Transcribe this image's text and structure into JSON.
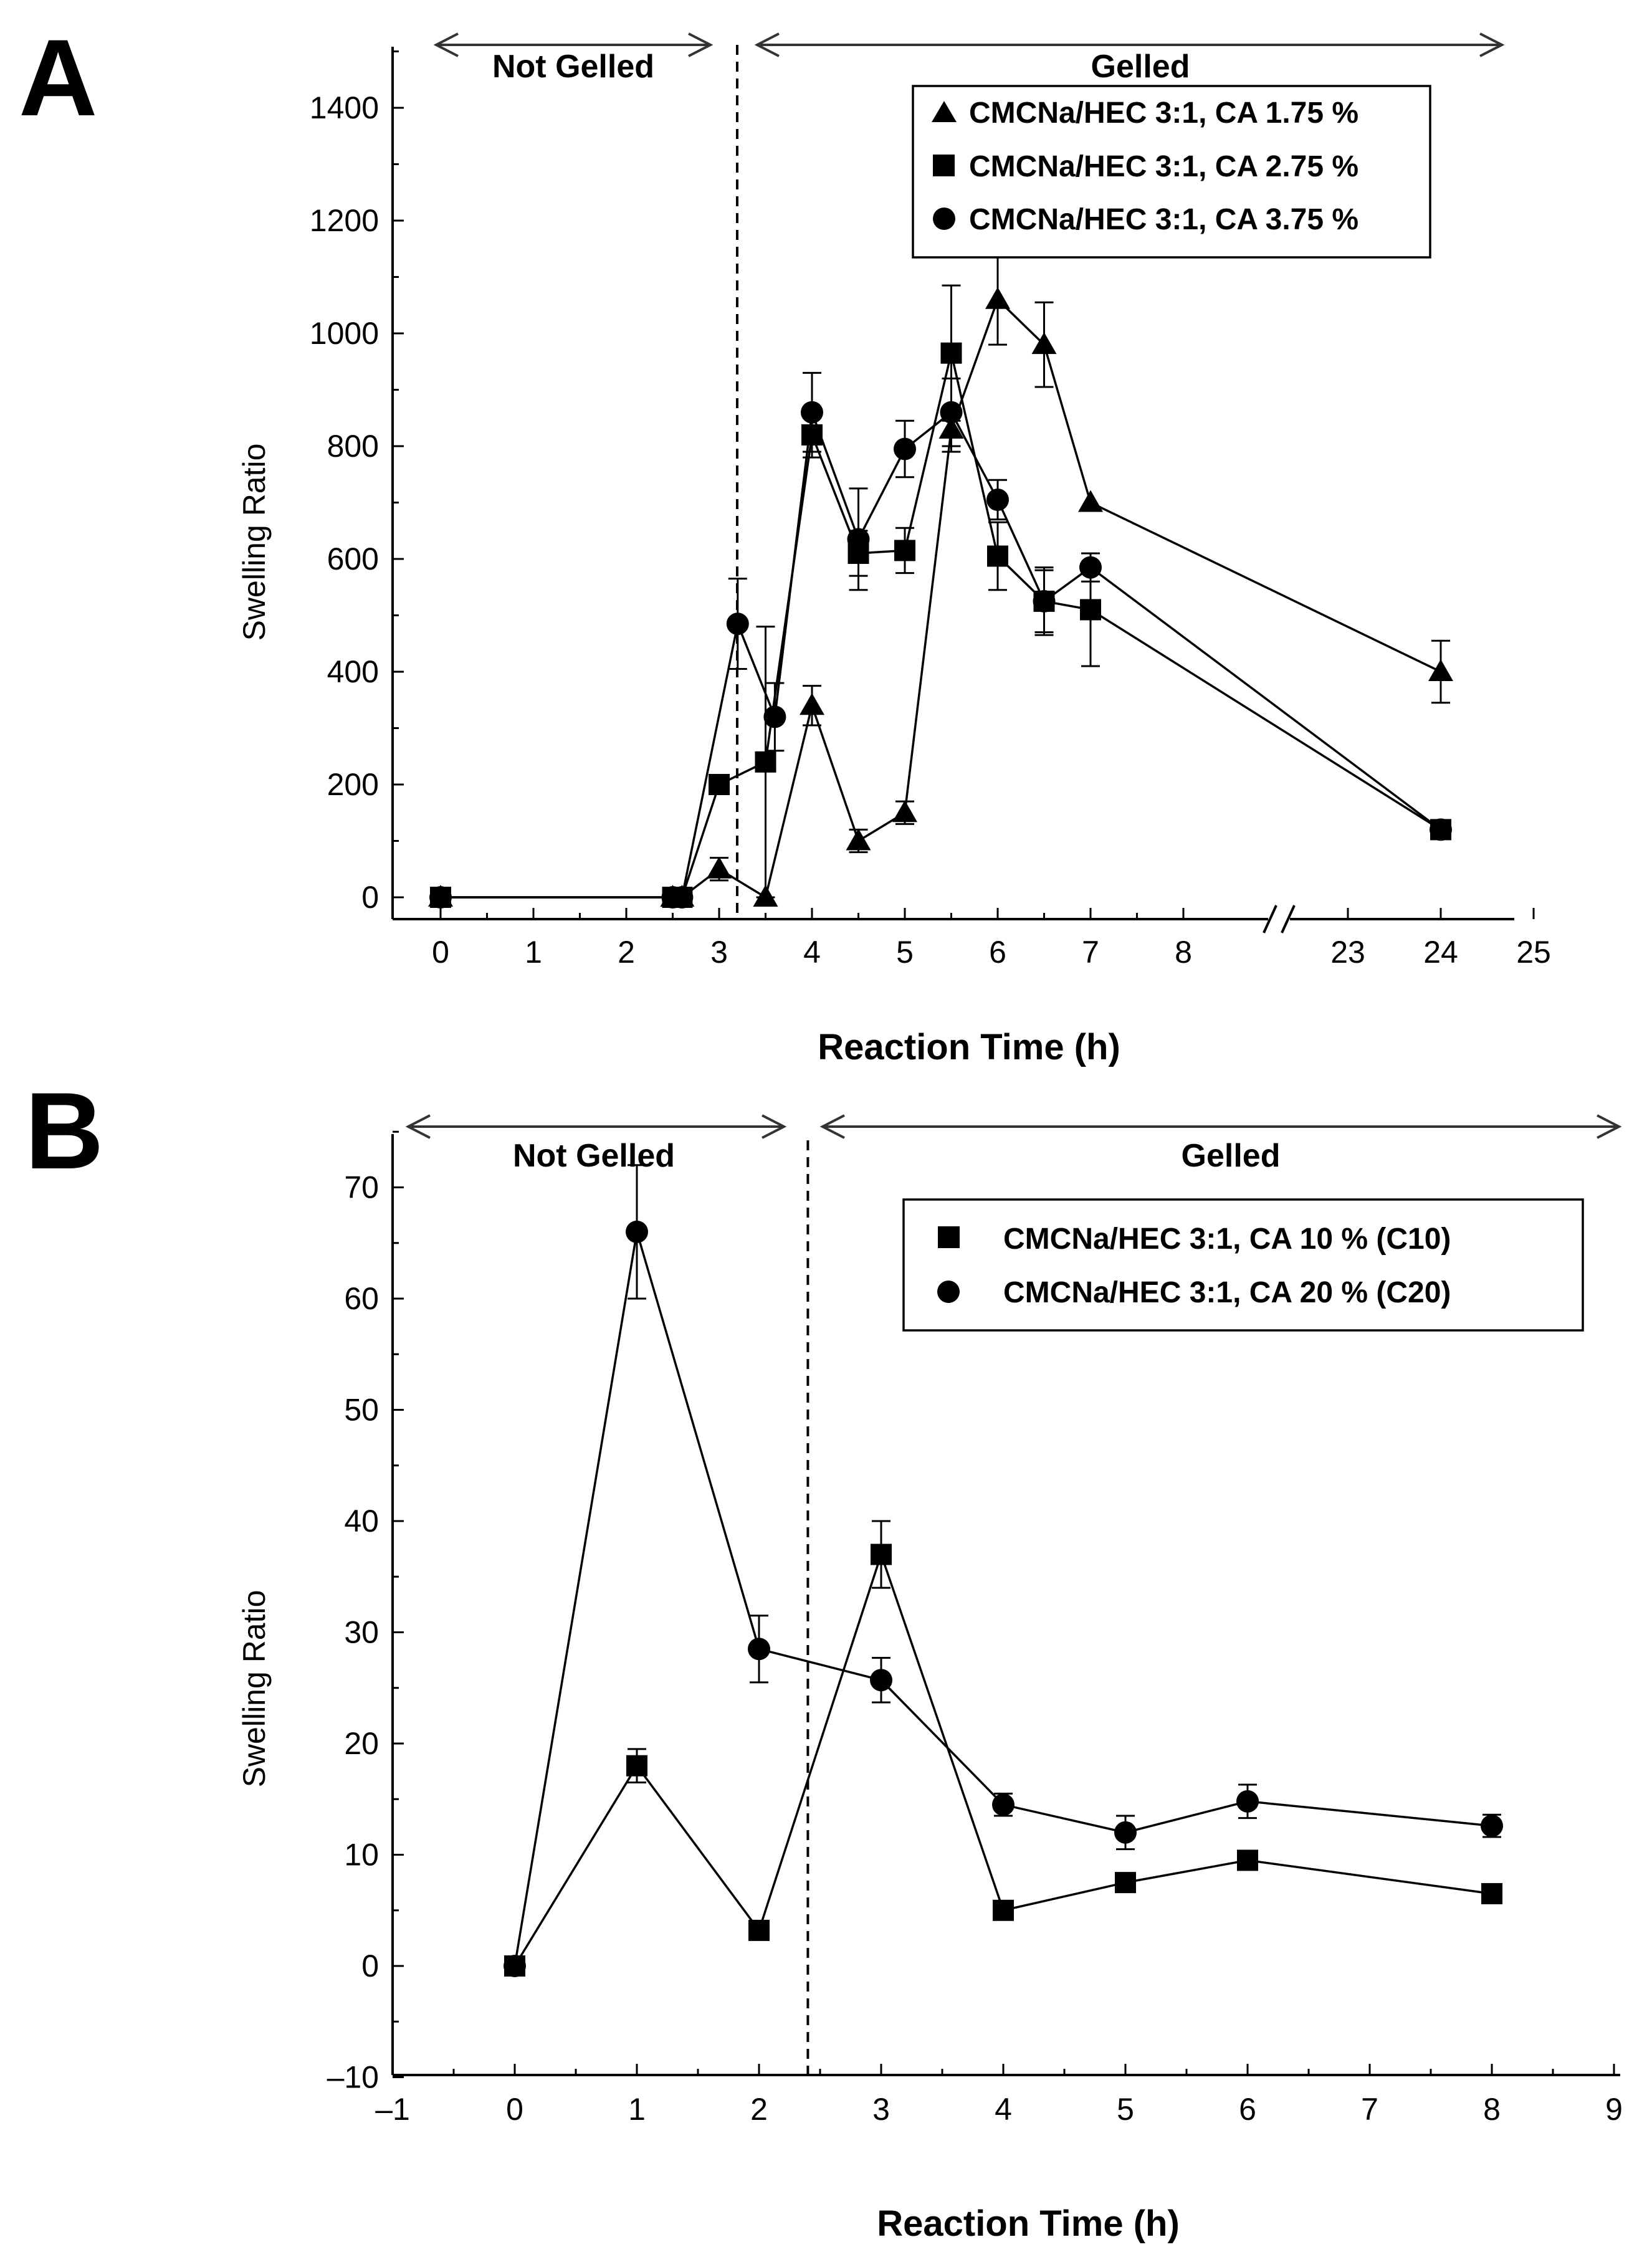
{
  "panels": {
    "a": {
      "letter": "A",
      "not_gelled": "Not Gelled",
      "gelled": "Gelled"
    },
    "b": {
      "letter": "B",
      "not_gelled": "Not Gelled",
      "gelled": "Gelled"
    }
  },
  "chart_data": [
    {
      "id": "A",
      "type": "line",
      "xlabel": "Reaction Time (h)",
      "ylabel": "Swelling Ratio",
      "ylim": [
        0,
        1500
      ],
      "yticks": [
        0,
        200,
        400,
        600,
        800,
        1000,
        1200,
        1400
      ],
      "xticks": [
        0,
        1,
        2,
        3,
        4,
        5,
        6,
        7,
        8,
        23,
        24,
        25
      ],
      "x_break": "between 8 and 23",
      "gel_point": 3.2,
      "legend_position": "top-right",
      "series": [
        {
          "name": "CMCNa/HEC 3:1, CA 1.75 %",
          "marker": "triangle",
          "x": [
            0,
            2.5,
            2.6,
            3,
            3.5,
            4,
            4.5,
            5,
            5.5,
            6,
            6.5,
            7,
            24
          ],
          "values": [
            0,
            0,
            0,
            50,
            0,
            340,
            100,
            150,
            830,
            1060,
            980,
            700,
            400
          ],
          "errors": [
            0,
            0,
            0,
            20,
            0,
            35,
            20,
            20,
            40,
            80,
            75,
            0,
            55
          ]
        },
        {
          "name": "CMCNa/HEC 3:1, CA 2.75 %",
          "marker": "square",
          "x": [
            0,
            2.5,
            2.6,
            3,
            3.5,
            4,
            4.5,
            5,
            5.5,
            6,
            6.5,
            7,
            24
          ],
          "values": [
            0,
            0,
            0,
            200,
            240,
            820,
            610,
            615,
            965,
            605,
            525,
            510,
            120
          ],
          "errors": [
            0,
            0,
            0,
            0,
            240,
            40,
            40,
            40,
            120,
            60,
            55,
            100,
            0
          ]
        },
        {
          "name": "CMCNa/HEC 3:1, CA 3.75 %",
          "marker": "circle",
          "x": [
            0,
            2.5,
            2.6,
            3.2,
            3.6,
            4,
            4.5,
            5,
            5.5,
            6,
            6.5,
            7,
            24
          ],
          "values": [
            0,
            0,
            0,
            485,
            320,
            860,
            635,
            795,
            860,
            705,
            525,
            585,
            120
          ],
          "errors": [
            0,
            0,
            0,
            80,
            60,
            70,
            90,
            50,
            60,
            35,
            60,
            25,
            0
          ]
        }
      ]
    },
    {
      "id": "B",
      "type": "line",
      "xlabel": "Reaction Time (h)",
      "ylabel": "Swelling Ratio",
      "xlim": [
        -1,
        9
      ],
      "ylim": [
        -10,
        75
      ],
      "xticks": [
        -1,
        0,
        1,
        2,
        3,
        4,
        5,
        6,
        7,
        8,
        9
      ],
      "xtick_labels": [
        "–1",
        "0",
        "1",
        "2",
        "3",
        "4",
        "5",
        "6",
        "7",
        "8",
        "9"
      ],
      "yticks": [
        -10,
        0,
        10,
        20,
        30,
        40,
        50,
        60,
        70
      ],
      "ytick_labels": [
        "–10",
        "0",
        "10",
        "20",
        "30",
        "40",
        "50",
        "60",
        "70"
      ],
      "gel_point": 2.4,
      "legend_position": "top-right",
      "series": [
        {
          "name": "CMCNa/HEC 3:1, CA 10 % (C10)",
          "marker": "square",
          "x": [
            0,
            1,
            2,
            3,
            4,
            5,
            6,
            8
          ],
          "values": [
            0,
            18,
            3.2,
            37,
            5,
            7.5,
            9.5,
            6.5
          ],
          "errors": [
            0,
            1.5,
            0.8,
            3,
            0.8,
            0.8,
            0.8,
            0.8
          ]
        },
        {
          "name": "CMCNa/HEC 3:1, CA 20 % (C20)",
          "marker": "circle",
          "x": [
            0,
            1,
            2,
            3,
            4,
            5,
            6,
            8
          ],
          "values": [
            0,
            66,
            28.5,
            25.7,
            14.5,
            12,
            14.8,
            12.6
          ],
          "errors": [
            0,
            6,
            3,
            2,
            1,
            1.5,
            1.5,
            1
          ]
        }
      ]
    }
  ]
}
